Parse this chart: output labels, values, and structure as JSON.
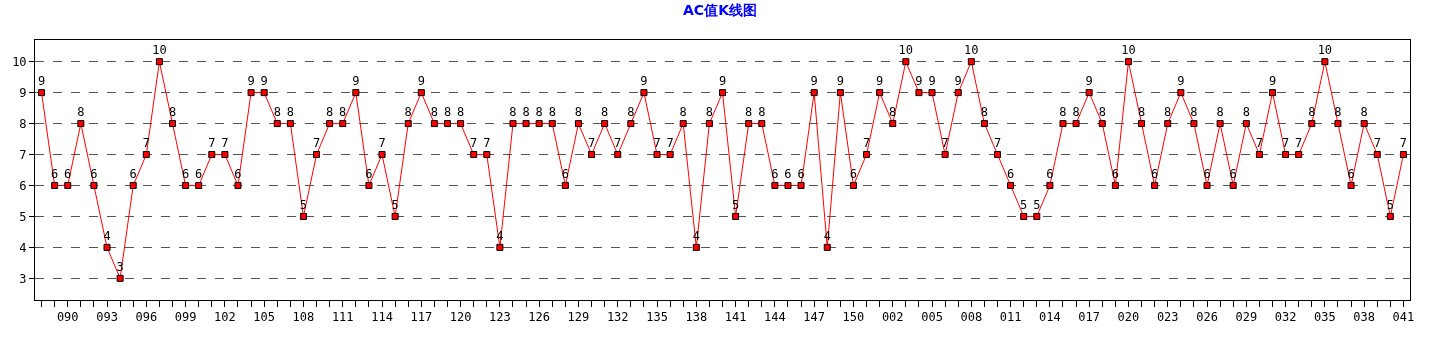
{
  "chart_data": {
    "type": "line",
    "title": "AC值K线图",
    "categories": [
      null,
      null,
      "090",
      null,
      null,
      "093",
      null,
      null,
      "096",
      null,
      null,
      "099",
      null,
      null,
      "102",
      null,
      null,
      "105",
      null,
      null,
      "108",
      null,
      null,
      "111",
      null,
      null,
      "114",
      null,
      null,
      "117",
      null,
      null,
      "120",
      null,
      null,
      "123",
      null,
      null,
      "126",
      null,
      null,
      "129",
      null,
      null,
      "132",
      null,
      null,
      "135",
      null,
      null,
      "138",
      null,
      null,
      "141",
      null,
      null,
      "144",
      null,
      null,
      "147",
      null,
      null,
      "150",
      null,
      null,
      "002",
      null,
      null,
      "005",
      null,
      null,
      "008",
      null,
      null,
      "011",
      null,
      null,
      "014",
      null,
      null,
      "017",
      null,
      null,
      "020",
      null,
      null,
      "023",
      null,
      null,
      "026",
      null,
      null,
      "029",
      null,
      null,
      "032",
      null,
      null,
      "035",
      null,
      null,
      "038",
      null,
      null,
      "041"
    ],
    "series": [
      {
        "color": "#ff0000",
        "values": [
          9,
          6,
          6,
          8,
          6,
          4,
          3,
          6,
          7,
          10,
          8,
          6,
          6,
          7,
          7,
          6,
          9,
          9,
          8,
          8,
          5,
          7,
          8,
          8,
          9,
          6,
          7,
          5,
          8,
          9,
          8,
          8,
          8,
          7,
          7,
          4,
          8,
          8,
          8,
          8,
          6,
          8,
          7,
          8,
          7,
          8,
          9,
          7,
          7,
          8,
          4,
          8,
          9,
          5,
          8,
          8,
          6,
          6,
          6,
          9,
          4,
          9,
          6,
          7,
          9,
          8,
          10,
          9,
          9,
          7,
          9,
          10,
          8,
          7,
          6,
          5,
          5,
          6,
          8,
          8,
          9,
          8,
          6,
          10,
          8,
          6,
          8,
          9,
          8,
          6,
          8,
          6,
          8,
          7,
          9,
          7,
          7,
          8,
          10,
          8,
          6,
          8,
          7,
          5,
          7
        ]
      }
    ],
    "ylim": [
      2.3,
      10.7
    ],
    "yticks": [
      3,
      4,
      5,
      6,
      7,
      8,
      9,
      10
    ],
    "grid": "y",
    "marker": "square",
    "line_style": "solid",
    "data_labels": true
  }
}
